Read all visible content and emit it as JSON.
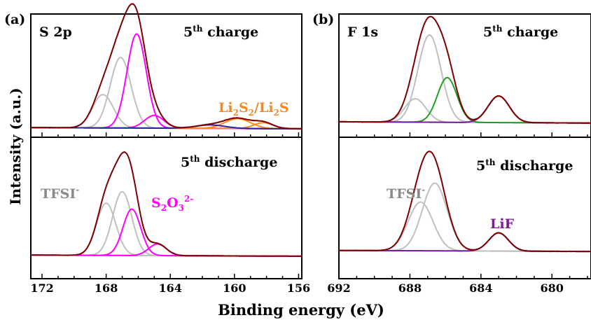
{
  "figure": {
    "xlabel": "Binding energy (eV)",
    "ylabel": "Intensity (a.u.)"
  },
  "chart_data": [
    {
      "type": "line",
      "panel_label": "(a)",
      "element": "S 2p",
      "x_reversed": true,
      "xlim": [
        172.7,
        155.8
      ],
      "xticks": [
        172,
        168,
        164,
        160,
        156
      ],
      "annotations": [
        "TFSI",
        "S2O3 2-",
        "Li2S2/Li2S"
      ],
      "subplots": [
        {
          "state_label": "5th charge",
          "series": [
            {
              "name": "TFSI",
              "color": "#c0c0c0",
              "peaks": [
                {
                  "center": 168.2,
                  "height": 0.34,
                  "width": 0.65
                },
                {
                  "center": 167.1,
                  "height": 0.72,
                  "width": 0.65
                }
              ]
            },
            {
              "name": "S2O3 2-",
              "color": "#ff00ff",
              "peaks": [
                {
                  "center": 166.1,
                  "height": 0.96,
                  "width": 0.6
                },
                {
                  "center": 165.0,
                  "height": 0.13,
                  "width": 0.6
                }
              ]
            },
            {
              "name": "Li2S2/Li2S",
              "color": "#ff8c1a",
              "peaks": [
                {
                  "center": 159.8,
                  "height": 0.1,
                  "width": 0.8
                },
                {
                  "center": 158.2,
                  "height": 0.06,
                  "width": 0.6
                }
              ]
            },
            {
              "name": "",
              "color": "#1a2a9e",
              "peaks": [
                {
                  "center": 161.5,
                  "height": 0.035,
                  "width": 0.9
                }
              ]
            },
            {
              "name": "envelope",
              "color": "#7a0000",
              "sum_of_all": true,
              "noise": true
            }
          ]
        },
        {
          "state_label": "5th discharge",
          "series": [
            {
              "name": "TFSI",
              "color": "#c0c0c0",
              "peaks": [
                {
                  "center": 168.0,
                  "height": 0.54,
                  "width": 0.6
                },
                {
                  "center": 167.0,
                  "height": 0.66,
                  "width": 0.6
                }
              ]
            },
            {
              "name": "S2O3 2-",
              "color": "#ff00ff",
              "peaks": [
                {
                  "center": 166.4,
                  "height": 0.48,
                  "width": 0.55
                },
                {
                  "center": 164.8,
                  "height": 0.12,
                  "width": 0.55
                }
              ]
            },
            {
              "name": "envelope",
              "color": "#7a0000",
              "sum_of_all": true,
              "noise": true
            }
          ]
        }
      ]
    },
    {
      "type": "line",
      "panel_label": "(b)",
      "element": "F 1s",
      "x_reversed": true,
      "xlim": [
        692,
        677.8
      ],
      "xticks": [
        692,
        688,
        684,
        680
      ],
      "annotations": [
        "TFSI",
        "LiF"
      ],
      "subplots": [
        {
          "state_label": "5th charge",
          "series": [
            {
              "name": "TFSI",
              "color": "#c0c0c0",
              "peaks": [
                {
                  "center": 687.7,
                  "height": 0.22,
                  "width": 0.6
                },
                {
                  "center": 686.9,
                  "height": 0.82,
                  "width": 0.65
                }
              ]
            },
            {
              "name": "",
              "color": "#1ea01e",
              "peaks": [
                {
                  "center": 685.9,
                  "height": 0.42,
                  "width": 0.55
                }
              ]
            },
            {
              "name": "LiF",
              "color": "#7a1a9e",
              "peaks": [
                {
                  "center": 683.0,
                  "height": 0.25,
                  "width": 0.6
                }
              ]
            },
            {
              "name": "envelope",
              "color": "#7a0000",
              "sum_of_all": true,
              "noise": true
            }
          ]
        },
        {
          "state_label": "5th discharge",
          "series": [
            {
              "name": "TFSI",
              "color": "#c0c0c0",
              "peaks": [
                {
                  "center": 687.4,
                  "height": 0.56,
                  "width": 0.7
                },
                {
                  "center": 686.6,
                  "height": 0.78,
                  "width": 0.7
                }
              ]
            },
            {
              "name": "LiF",
              "color": "#7a1a9e",
              "peaks": [
                {
                  "center": 683.0,
                  "height": 0.21,
                  "width": 0.55
                }
              ]
            },
            {
              "name": "envelope",
              "color": "#7a0000",
              "sum_of_all": true,
              "noise": true
            }
          ]
        }
      ]
    }
  ]
}
